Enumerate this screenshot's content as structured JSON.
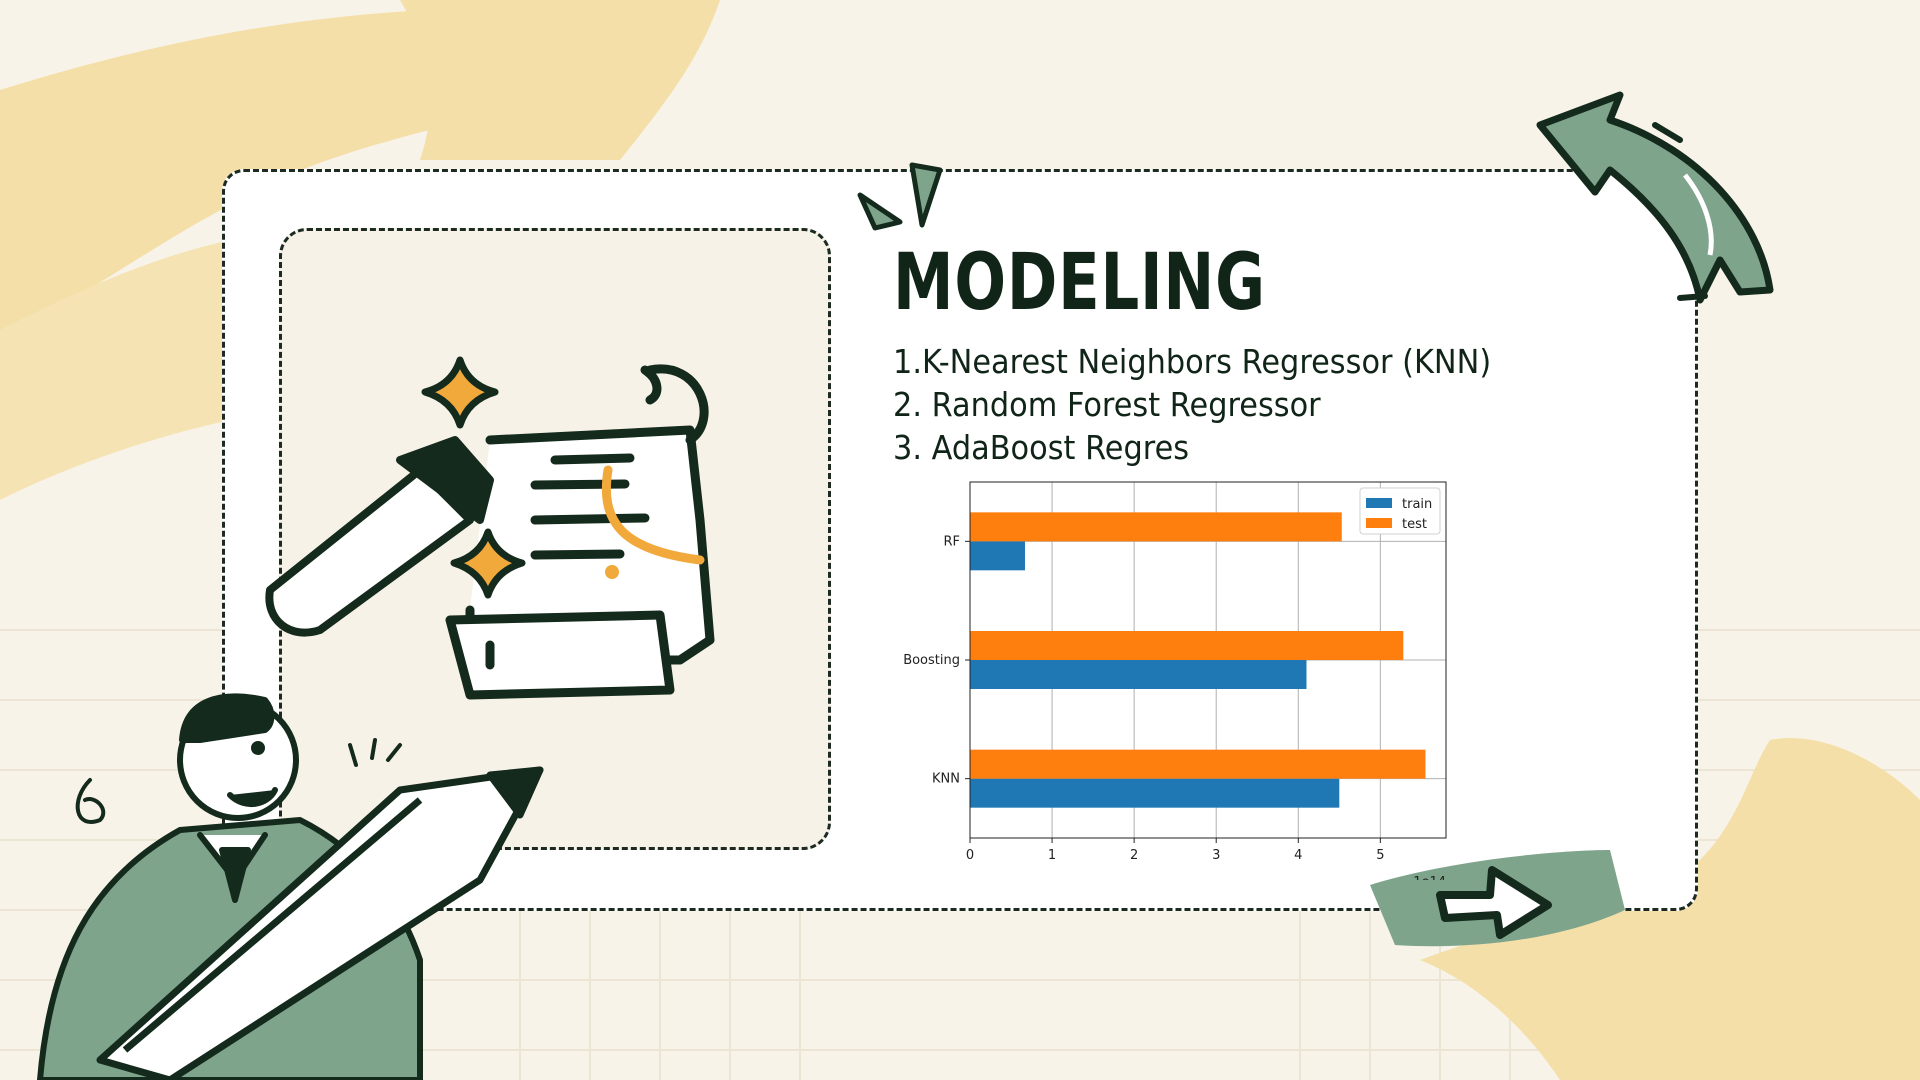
{
  "slide": {
    "title": "MODELING",
    "models": [
      "1.K-Nearest Neighbors Regressor (KNN)",
      "2. Random Forest Regressor",
      "3. AdaBoost Regres"
    ]
  },
  "colors": {
    "background": "#f8f3e8",
    "card": "#ffffff",
    "accent_yellow": "#f5dfa8",
    "accent_green": "#7fa48c",
    "ink": "#102418",
    "orange_sparkle": "#f2a93b"
  },
  "chart_data": {
    "type": "bar",
    "orientation": "horizontal",
    "categories": [
      "KNN",
      "Boosting",
      "RF"
    ],
    "series": [
      {
        "name": "train",
        "color": "#1f77b4",
        "values": [
          4.5,
          4.1,
          0.67
        ]
      },
      {
        "name": "test",
        "color": "#ff7f0e",
        "values": [
          5.55,
          5.28,
          4.53
        ]
      }
    ],
    "xlim": [
      0,
      5.8
    ],
    "xticks": [
      "0",
      "1",
      "2",
      "3",
      "4",
      "5"
    ],
    "x_offset_label": "1e14",
    "grid": true,
    "legend_position": "top-right"
  }
}
